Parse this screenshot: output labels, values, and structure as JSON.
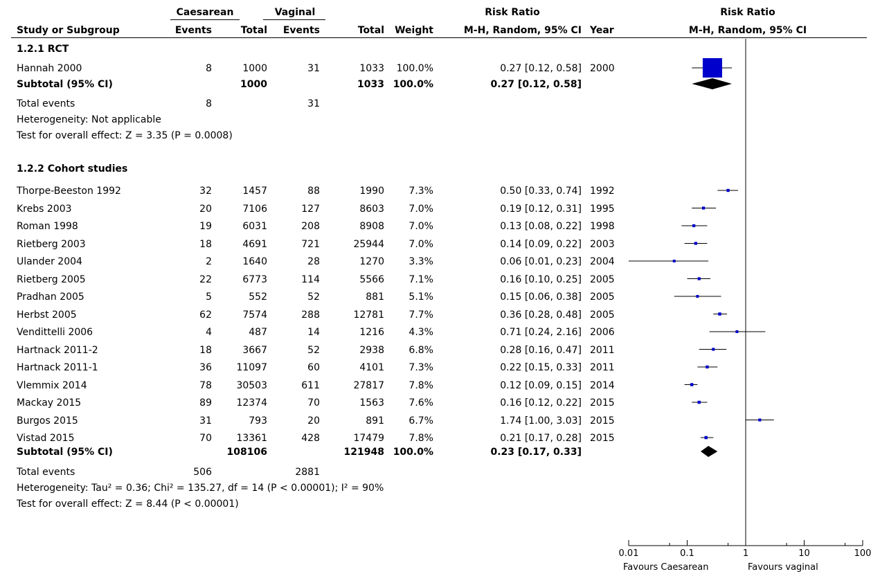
{
  "header": {
    "group1": "Caesarean",
    "group2": "Vaginal",
    "rr_title": "Risk Ratio",
    "plot_title": "Risk Ratio",
    "col_study": "Study or Subgroup",
    "col_events1": "Events",
    "col_total1": "Total",
    "col_events2": "Events",
    "col_total2": "Total",
    "col_weight": "Weight",
    "col_method": "M-H, Random, 95% CI",
    "col_year": "Year",
    "plot_method": "M-H, Random, 95% CI"
  },
  "subgroups": [
    {
      "title": "1.2.1 RCT",
      "studies": [
        {
          "name": "Hannah 2000",
          "e1": "8",
          "t1": "1000",
          "e2": "31",
          "t2": "1033",
          "weight": "100.0%",
          "ci": "0.27 [0.12, 0.58]",
          "year": "2000"
        }
      ],
      "subtotal": {
        "label": "Subtotal (95% CI)",
        "t1": "1000",
        "t2": "1033",
        "weight": "100.0%",
        "ci": "0.27 [0.12, 0.58]"
      },
      "total_events": {
        "label": "Total events",
        "e1": "8",
        "e2": "31"
      },
      "heterogeneity": "Heterogeneity: Not applicable",
      "overall": "Test for overall effect: Z = 3.35 (P = 0.0008)"
    },
    {
      "title": "1.2.2 Cohort studies",
      "studies": [
        {
          "name": "Thorpe-Beeston 1992",
          "e1": "32",
          "t1": "1457",
          "e2": "88",
          "t2": "1990",
          "weight": "7.3%",
          "ci": "0.50 [0.33, 0.74]",
          "year": "1992"
        },
        {
          "name": "Krebs 2003",
          "e1": "20",
          "t1": "7106",
          "e2": "127",
          "t2": "8603",
          "weight": "7.0%",
          "ci": "0.19 [0.12, 0.31]",
          "year": "1995"
        },
        {
          "name": "Roman 1998",
          "e1": "19",
          "t1": "6031",
          "e2": "208",
          "t2": "8908",
          "weight": "7.0%",
          "ci": "0.13 [0.08, 0.22]",
          "year": "1998"
        },
        {
          "name": "Rietberg 2003",
          "e1": "18",
          "t1": "4691",
          "e2": "721",
          "t2": "25944",
          "weight": "7.0%",
          "ci": "0.14 [0.09, 0.22]",
          "year": "2003"
        },
        {
          "name": "Ulander 2004",
          "e1": "2",
          "t1": "1640",
          "e2": "28",
          "t2": "1270",
          "weight": "3.3%",
          "ci": "0.06 [0.01, 0.23]",
          "year": "2004"
        },
        {
          "name": "Rietberg 2005",
          "e1": "22",
          "t1": "6773",
          "e2": "114",
          "t2": "5566",
          "weight": "7.1%",
          "ci": "0.16 [0.10, 0.25]",
          "year": "2005"
        },
        {
          "name": "Pradhan 2005",
          "e1": "5",
          "t1": "552",
          "e2": "52",
          "t2": "881",
          "weight": "5.1%",
          "ci": "0.15 [0.06, 0.38]",
          "year": "2005"
        },
        {
          "name": "Herbst 2005",
          "e1": "62",
          "t1": "7574",
          "e2": "288",
          "t2": "12781",
          "weight": "7.7%",
          "ci": "0.36 [0.28, 0.48]",
          "year": "2005"
        },
        {
          "name": "Vendittelli 2006",
          "e1": "4",
          "t1": "487",
          "e2": "14",
          "t2": "1216",
          "weight": "4.3%",
          "ci": "0.71 [0.24, 2.16]",
          "year": "2006"
        },
        {
          "name": "Hartnack 2011-2",
          "e1": "18",
          "t1": "3667",
          "e2": "52",
          "t2": "2938",
          "weight": "6.8%",
          "ci": "0.28 [0.16, 0.47]",
          "year": "2011"
        },
        {
          "name": "Hartnack 2011-1",
          "e1": "36",
          "t1": "11097",
          "e2": "60",
          "t2": "4101",
          "weight": "7.3%",
          "ci": "0.22 [0.15, 0.33]",
          "year": "2011"
        },
        {
          "name": "Vlemmix 2014",
          "e1": "78",
          "t1": "30503",
          "e2": "611",
          "t2": "27817",
          "weight": "7.8%",
          "ci": "0.12 [0.09, 0.15]",
          "year": "2014"
        },
        {
          "name": "Mackay 2015",
          "e1": "89",
          "t1": "12374",
          "e2": "70",
          "t2": "1563",
          "weight": "7.6%",
          "ci": "0.16 [0.12, 0.22]",
          "year": "2015"
        },
        {
          "name": "Burgos 2015",
          "e1": "31",
          "t1": "793",
          "e2": "20",
          "t2": "891",
          "weight": "6.7%",
          "ci": "1.74 [1.00, 3.03]",
          "year": "2015"
        },
        {
          "name": "Vistad 2015",
          "e1": "70",
          "t1": "13361",
          "e2": "428",
          "t2": "17479",
          "weight": "7.8%",
          "ci": "0.21 [0.17, 0.28]",
          "year": "2015"
        }
      ],
      "subtotal": {
        "label": "Subtotal (95% CI)",
        "t1": "108106",
        "t2": "121948",
        "weight": "100.0%",
        "ci": "0.23 [0.17, 0.33]"
      },
      "total_events": {
        "label": "Total events",
        "e1": "506",
        "e2": "2881"
      },
      "heterogeneity": "Heterogeneity: Tau² = 0.36; Chi² = 135.27, df = 14 (P < 0.00001); I² = 90%",
      "overall": "Test for overall effect: Z = 8.44 (P < 0.00001)"
    }
  ],
  "axis": {
    "favours_left": "Favours Caesarean",
    "favours_right": "Favours vaginal"
  },
  "colors": {
    "study_marker": "#0000cc",
    "subtotal_marker": "#000000",
    "line": "#000000"
  },
  "chart_data": {
    "type": "forest",
    "scale": "log",
    "xlim": [
      0.01,
      100
    ],
    "x_ticks": [
      "0.01",
      "0.1",
      "1",
      "10",
      "100"
    ],
    "reference_line": 1,
    "points": [
      {
        "study": "Hannah 2000",
        "rr": 0.27,
        "lo": 0.12,
        "hi": 0.58,
        "weight": 100.0
      },
      {
        "study": "Subtotal RCT",
        "rr": 0.27,
        "lo": 0.12,
        "hi": 0.58,
        "diamond": true
      },
      {
        "study": "Thorpe-Beeston 1992",
        "rr": 0.5,
        "lo": 0.33,
        "hi": 0.74,
        "weight": 7.3
      },
      {
        "study": "Krebs 2003",
        "rr": 0.19,
        "lo": 0.12,
        "hi": 0.31,
        "weight": 7.0
      },
      {
        "study": "Roman 1998",
        "rr": 0.13,
        "lo": 0.08,
        "hi": 0.22,
        "weight": 7.0
      },
      {
        "study": "Rietberg 2003",
        "rr": 0.14,
        "lo": 0.09,
        "hi": 0.22,
        "weight": 7.0
      },
      {
        "study": "Ulander 2004",
        "rr": 0.06,
        "lo": 0.01,
        "hi": 0.23,
        "weight": 3.3
      },
      {
        "study": "Rietberg 2005",
        "rr": 0.16,
        "lo": 0.1,
        "hi": 0.25,
        "weight": 7.1
      },
      {
        "study": "Pradhan 2005",
        "rr": 0.15,
        "lo": 0.06,
        "hi": 0.38,
        "weight": 5.1
      },
      {
        "study": "Herbst 2005",
        "rr": 0.36,
        "lo": 0.28,
        "hi": 0.48,
        "weight": 7.7
      },
      {
        "study": "Vendittelli 2006",
        "rr": 0.71,
        "lo": 0.24,
        "hi": 2.16,
        "weight": 4.3
      },
      {
        "study": "Hartnack 2011-2",
        "rr": 0.28,
        "lo": 0.16,
        "hi": 0.47,
        "weight": 6.8
      },
      {
        "study": "Hartnack 2011-1",
        "rr": 0.22,
        "lo": 0.15,
        "hi": 0.33,
        "weight": 7.3
      },
      {
        "study": "Vlemmix 2014",
        "rr": 0.12,
        "lo": 0.09,
        "hi": 0.15,
        "weight": 7.8
      },
      {
        "study": "Mackay 2015",
        "rr": 0.16,
        "lo": 0.12,
        "hi": 0.22,
        "weight": 7.6
      },
      {
        "study": "Burgos 2015",
        "rr": 1.74,
        "lo": 1.0,
        "hi": 3.03,
        "weight": 6.7
      },
      {
        "study": "Vistad 2015",
        "rr": 0.21,
        "lo": 0.17,
        "hi": 0.28,
        "weight": 7.8
      },
      {
        "study": "Subtotal Cohort",
        "rr": 0.23,
        "lo": 0.17,
        "hi": 0.33,
        "diamond": true
      }
    ]
  }
}
